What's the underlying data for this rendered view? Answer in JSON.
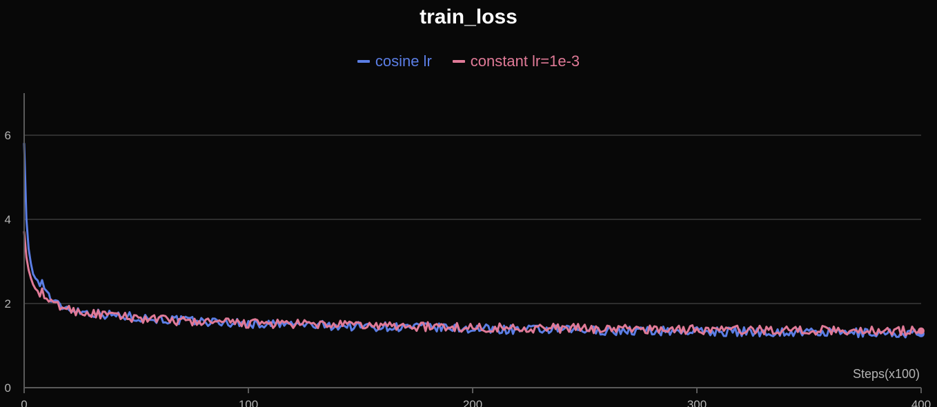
{
  "chart_data": {
    "type": "line",
    "title": "train_loss",
    "xlabel": "Steps(x100)",
    "ylabel": "",
    "xlim": [
      0,
      400
    ],
    "ylim": [
      0,
      7
    ],
    "xticks": [
      0,
      100,
      200,
      300,
      400
    ],
    "yticks": [
      0,
      2,
      4,
      6
    ],
    "grid": true,
    "legend_position": "top-center",
    "colors": {
      "background": "#080808",
      "grid": "#3a3a3a",
      "axis": "#5a5a5a",
      "tick_label": "#b4b4b4"
    },
    "series": [
      {
        "name": "cosine lr",
        "color": "#5b7ee5",
        "x": [
          0,
          1,
          2,
          3,
          4,
          5,
          6,
          8,
          10,
          12,
          14,
          16,
          18,
          20,
          25,
          30,
          35,
          40,
          45,
          50,
          60,
          70,
          80,
          90,
          100,
          120,
          140,
          160,
          180,
          200,
          220,
          240,
          260,
          280,
          300,
          320,
          340,
          360,
          380,
          400
        ],
        "values": [
          5.8,
          4.0,
          3.3,
          2.95,
          2.7,
          2.6,
          2.55,
          2.5,
          2.3,
          2.1,
          2.0,
          1.95,
          1.92,
          1.88,
          1.82,
          1.78,
          1.75,
          1.72,
          1.7,
          1.68,
          1.63,
          1.6,
          1.57,
          1.55,
          1.52,
          1.5,
          1.47,
          1.45,
          1.43,
          1.4,
          1.38,
          1.37,
          1.36,
          1.35,
          1.34,
          1.33,
          1.32,
          1.31,
          1.3,
          1.28
        ]
      },
      {
        "name": "constant lr=1e-3",
        "color": "#e07a97",
        "x": [
          0,
          1,
          2,
          3,
          4,
          5,
          6,
          8,
          10,
          12,
          14,
          16,
          18,
          20,
          25,
          30,
          35,
          40,
          45,
          50,
          60,
          70,
          80,
          90,
          100,
          120,
          140,
          160,
          180,
          200,
          220,
          240,
          260,
          280,
          300,
          320,
          340,
          360,
          380,
          400
        ],
        "values": [
          3.7,
          3.1,
          2.8,
          2.6,
          2.45,
          2.35,
          2.3,
          2.25,
          2.1,
          2.0,
          1.97,
          1.94,
          1.9,
          1.86,
          1.8,
          1.76,
          1.73,
          1.7,
          1.68,
          1.66,
          1.62,
          1.58,
          1.56,
          1.54,
          1.53,
          1.51,
          1.49,
          1.47,
          1.45,
          1.43,
          1.42,
          1.41,
          1.4,
          1.39,
          1.38,
          1.37,
          1.37,
          1.36,
          1.36,
          1.35
        ]
      }
    ]
  }
}
